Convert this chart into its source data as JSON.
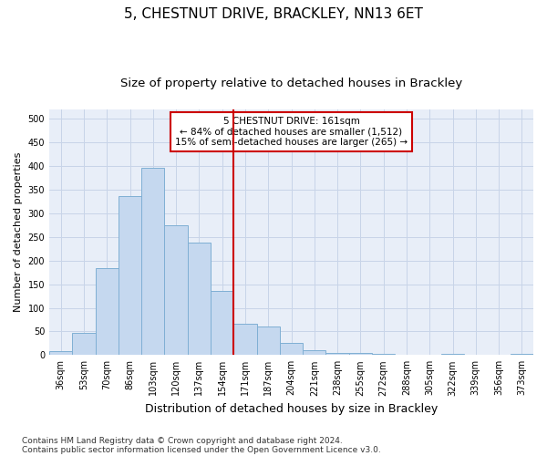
{
  "title": "5, CHESTNUT DRIVE, BRACKLEY, NN13 6ET",
  "subtitle": "Size of property relative to detached houses in Brackley",
  "xlabel": "Distribution of detached houses by size in Brackley",
  "ylabel": "Number of detached properties",
  "categories": [
    "36sqm",
    "53sqm",
    "70sqm",
    "86sqm",
    "103sqm",
    "120sqm",
    "137sqm",
    "154sqm",
    "171sqm",
    "187sqm",
    "204sqm",
    "221sqm",
    "238sqm",
    "255sqm",
    "272sqm",
    "288sqm",
    "305sqm",
    "322sqm",
    "339sqm",
    "356sqm",
    "373sqm"
  ],
  "values": [
    8,
    46,
    184,
    337,
    397,
    275,
    238,
    135,
    67,
    61,
    25,
    11,
    5,
    4,
    2,
    0,
    0,
    2,
    0,
    0,
    2
  ],
  "bar_color": "#c5d8ef",
  "bar_edge_color": "#7fafd4",
  "vline_color": "#cc0000",
  "annotation_text": "5 CHESTNUT DRIVE: 161sqm\n← 84% of detached houses are smaller (1,512)\n15% of semi-detached houses are larger (265) →",
  "annotation_box_color": "#ffffff",
  "annotation_box_edge": "#cc0000",
  "footnote1": "Contains HM Land Registry data © Crown copyright and database right 2024.",
  "footnote2": "Contains public sector information licensed under the Open Government Licence v3.0.",
  "ylim": [
    0,
    520
  ],
  "yticks": [
    0,
    50,
    100,
    150,
    200,
    250,
    300,
    350,
    400,
    450,
    500
  ],
  "title_fontsize": 11,
  "subtitle_fontsize": 9.5,
  "xlabel_fontsize": 9,
  "ylabel_fontsize": 8,
  "tick_fontsize": 7,
  "annotation_fontsize": 7.5,
  "footnote_fontsize": 6.5,
  "bg_color": "#e8eef8",
  "grid_color": "#c8d4e8"
}
